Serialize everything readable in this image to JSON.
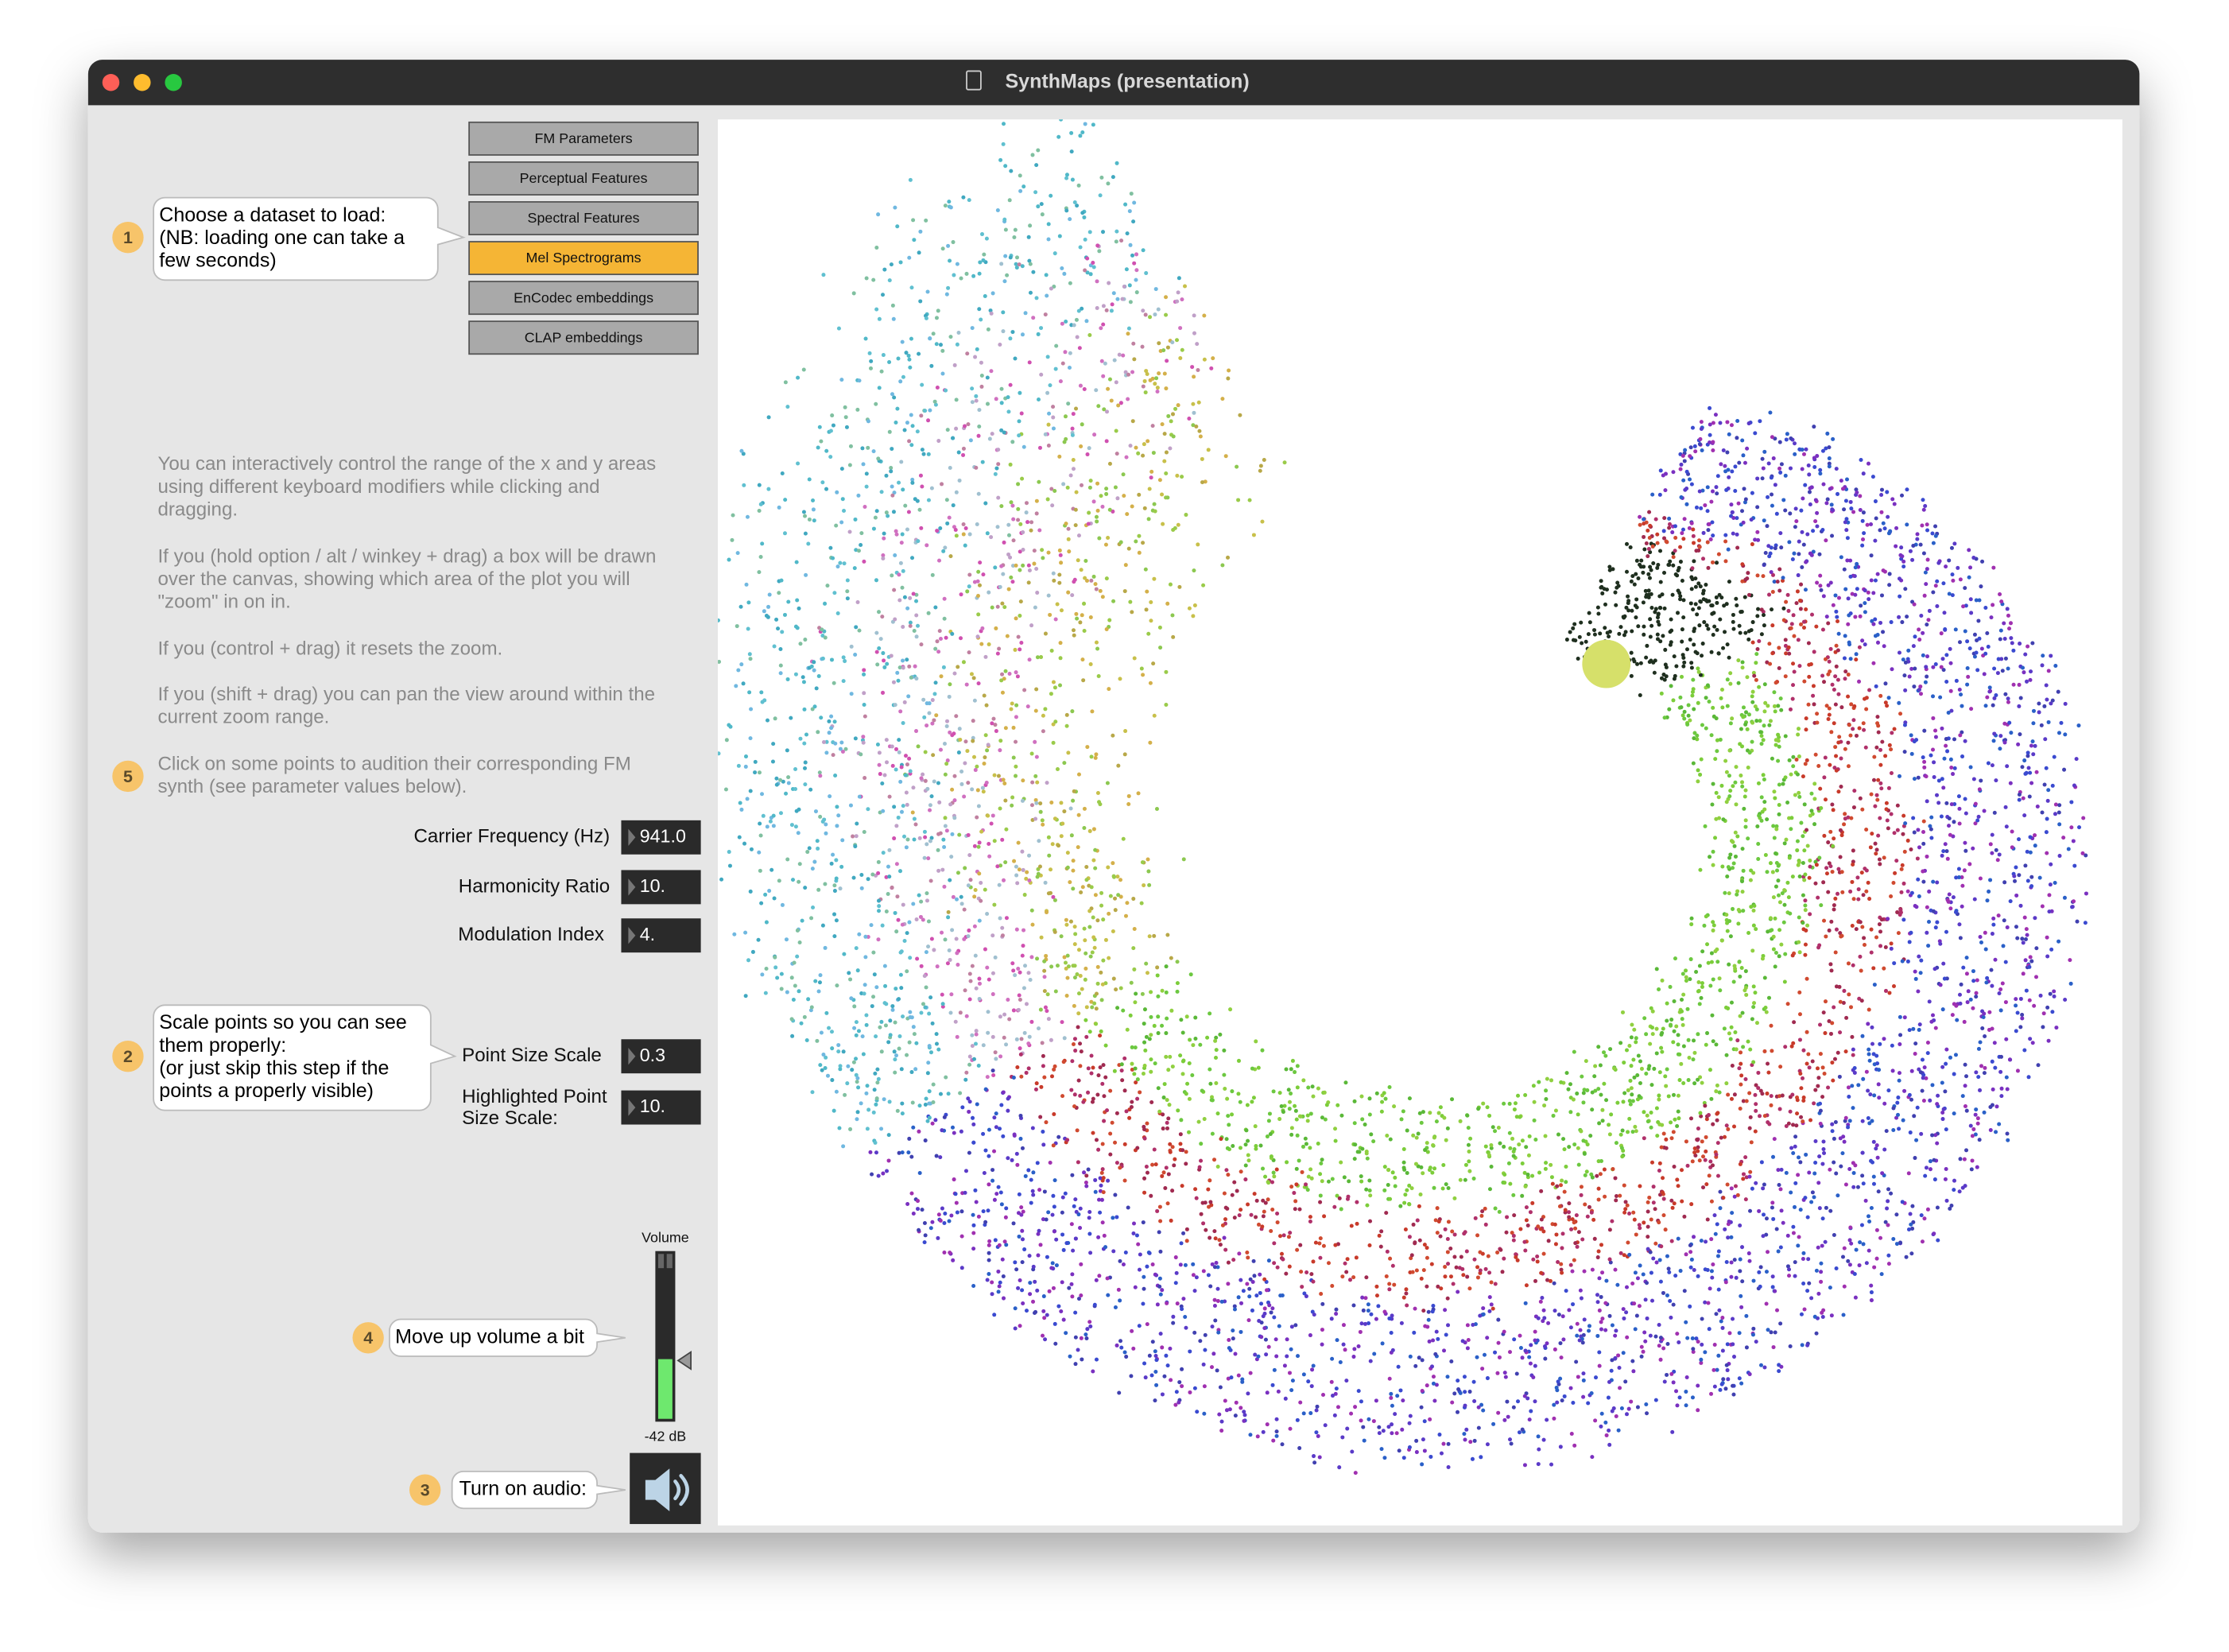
{
  "window": {
    "title": "SynthMaps (presentation)"
  },
  "dataset_buttons": [
    "FM Parameters",
    "Perceptual Features",
    "Spectral Features",
    "Mel Spectrograms",
    "EnCodec embeddings",
    "CLAP embeddings"
  ],
  "step1": {
    "number": "1",
    "lines": [
      "Choose a dataset to load:",
      "(NB: loading one can take a",
      "few seconds)"
    ]
  },
  "help": {
    "paragraphs": [
      [
        "You can interactively control the range of the x and y areas",
        "using different keyboard modifiers while clicking and",
        "dragging."
      ],
      [
        "If you (hold option / alt / winkey + drag) a box will be drawn",
        "over the canvas, showing which area of the plot you will",
        "\"zoom\" in on in."
      ],
      [
        "If you (control + drag) it resets the zoom."
      ],
      [
        "If you (shift + drag) you can pan the view around within the",
        "current zoom range."
      ]
    ]
  },
  "step5": {
    "number": "5",
    "lines": [
      "Click on some points to audition their corresponding FM",
      "synth (see parameter values below)."
    ]
  },
  "parameters": [
    {
      "label": "Carrier Frequency (Hz)",
      "value": "941.0"
    },
    {
      "label": "Harmonicity Ratio",
      "value": "10."
    },
    {
      "label": "Modulation Index",
      "value": "4."
    }
  ],
  "step2": {
    "number": "2",
    "lines": [
      "Scale points so you can see",
      "them properly:",
      "(or just skip this step if the",
      "points a properly visible)"
    ]
  },
  "point_size": {
    "label": "Point Size Scale",
    "value": "0.3"
  },
  "highlight_size": {
    "label": [
      "Highlighted Point",
      "Size Scale:"
    ],
    "value": "10."
  },
  "volume": {
    "label": "Volume",
    "level": "-42 dB"
  },
  "step4": {
    "number": "4",
    "lines": [
      "Move up volume a bit"
    ]
  },
  "step3": {
    "number": "3",
    "lines": [
      "Turn on audio:"
    ]
  }
}
